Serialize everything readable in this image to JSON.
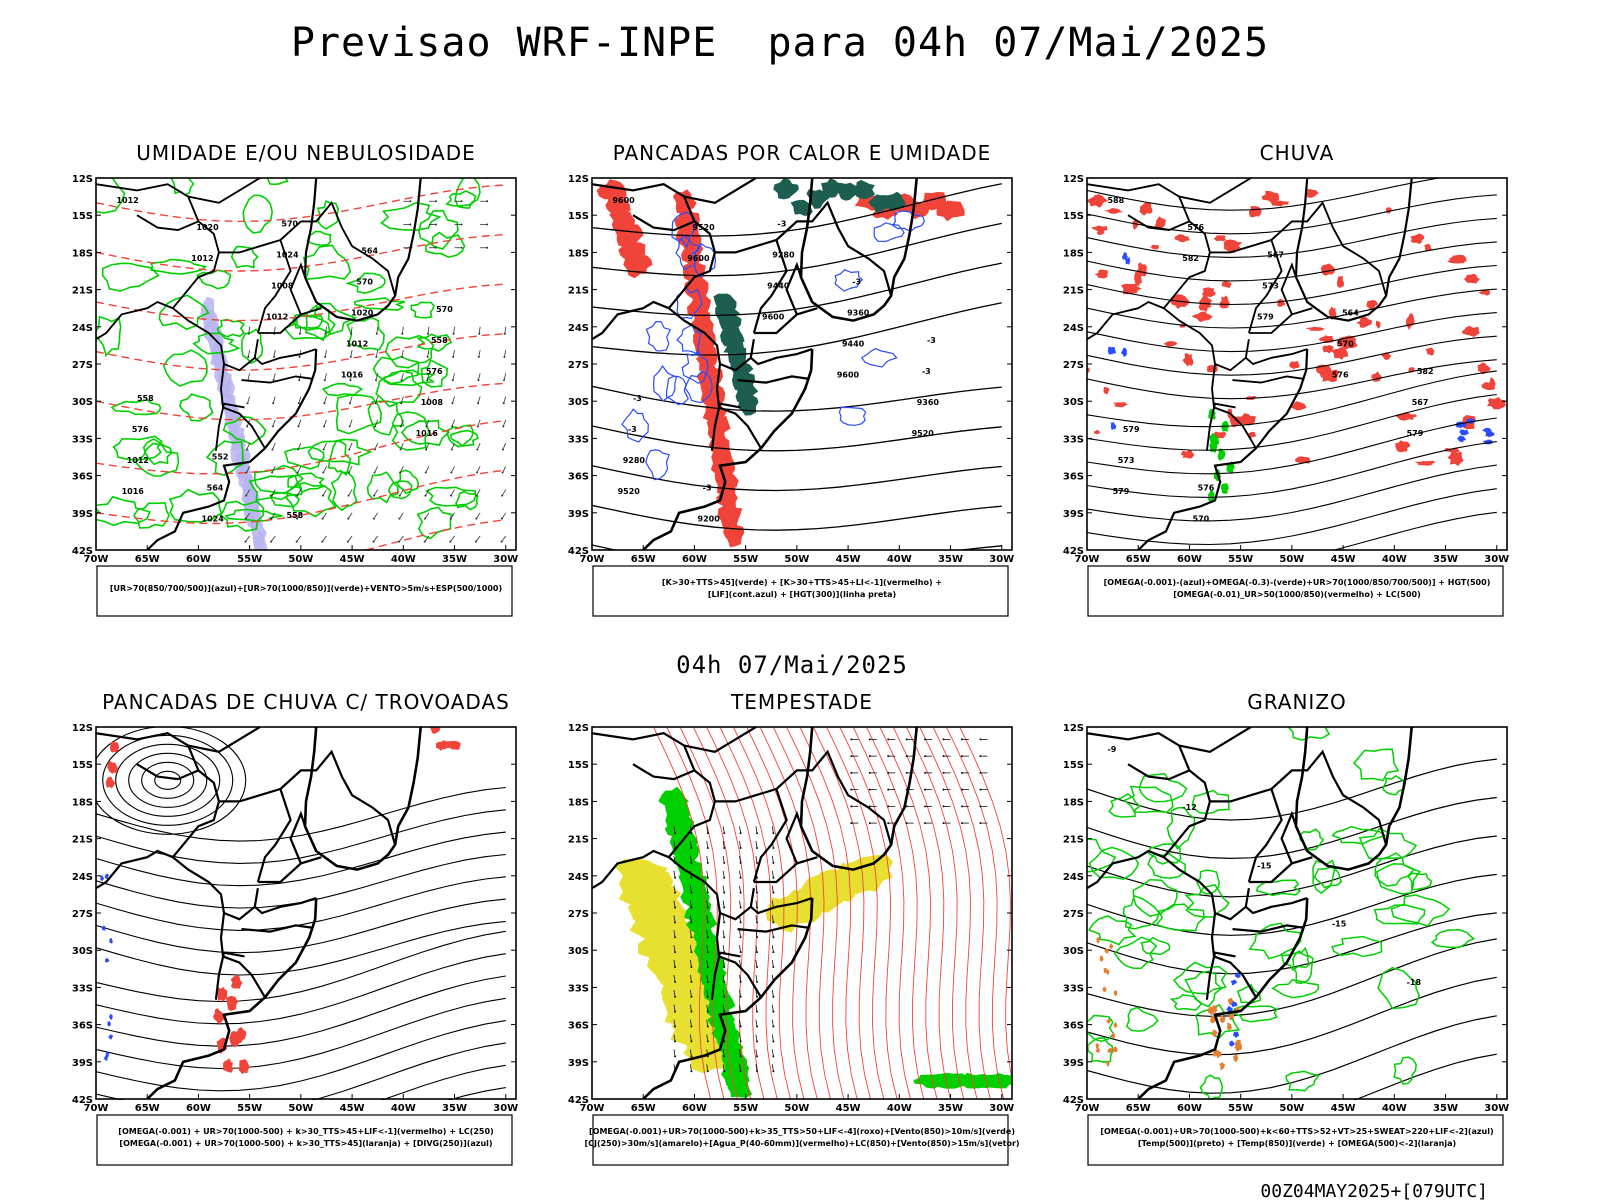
{
  "main_title": "Previsao WRF-INPE  para 04h 07/Mai/2025",
  "mid_label": "04h 07/Mai/2025",
  "footer_stamp": "00Z04MAY2025+[079UTC]",
  "colors": {
    "red": "#f0443a",
    "green": "#00d000",
    "blue": "#2a4cff",
    "lav": "#b8b4f0",
    "yellow": "#e8e030",
    "dkgreen": "#1e5e50",
    "orange": "#e08030",
    "black": "#000000"
  },
  "chart_data": {
    "type": "map-panels",
    "lat_ticks": [
      "12S",
      "15S",
      "18S",
      "21S",
      "24S",
      "27S",
      "30S",
      "33S",
      "36S",
      "39S",
      "42S"
    ],
    "lon_ticks": [
      "70W",
      "65W",
      "60W",
      "55W",
      "50W",
      "45W",
      "40W",
      "35W",
      "30W"
    ],
    "panels": [
      {
        "title": "UMIDADE E/OU NEBULOSIDADE",
        "caption": [
          "[UR>70(850/700/500)](azul)+[UR>70(1000/850)](verde)+VENTO>5m/s+ESP(500/1000)"
        ],
        "contour_labels": [
          "1012",
          "1012",
          "1012",
          "1016",
          "1016",
          "1016",
          "1020",
          "1008",
          "1012",
          "1008",
          "1012",
          "1024",
          "1024",
          "1020",
          "576",
          "576",
          "564",
          "570",
          "570",
          "558",
          "558",
          "552",
          "558",
          "564",
          "570"
        ]
      },
      {
        "title": "PANCADAS POR CALOR E UMIDADE",
        "caption": [
          "[K>30+TTS>45](verde) + [K>30+TTS>45+LI<-1](vermelho) +",
          "[LIF](cont.azul) + [HGT(300)](linha preta)"
        ],
        "contour_labels": [
          "9600",
          "9600",
          "9600",
          "9600",
          "9520",
          "9520",
          "9520",
          "9440",
          "9440",
          "9360",
          "9280",
          "9200",
          "9280",
          "9360",
          "-3",
          "-3",
          "-3",
          "-3",
          "-3",
          "-3",
          "-3"
        ]
      },
      {
        "title": "CHUVA",
        "caption": [
          "[OMEGA(-0.001)-(azul)+OMEGA(-0.3)-(verde)+UR>70(1000/850/700/500)] + HGT(500)",
          "[OMEGA(-0.01)_UR>50(1000/850)(vermelho) + LC(500)"
        ],
        "contour_labels": [
          "588",
          "582",
          "579",
          "576",
          "579",
          "579",
          "576",
          "573",
          "570",
          "567",
          "573",
          "570",
          "567",
          "564",
          "582",
          "579",
          "576"
        ]
      },
      {
        "title": "PANCADAS DE CHUVA C/ TROVOADAS",
        "caption": [
          "[OMEGA(-0.001) + UR>70(1000-500) + k>30_TTS>45+LIF<-1](vermelho) + LC(250)",
          "[OMEGA(-0.001) + UR>70(1000-500) + k>30_TTS>45](laranja) + [DIVG(250)](azul)"
        ],
        "contour_labels": []
      },
      {
        "title": "TEMPESTADE",
        "caption": [
          "[OMEGA(-0.001)+UR>70(1000-500)+k>35_TTS>50+LIF<-4](roxo)+[Vento(850)>10m/s](verde)",
          "[CJ(250)>30m/s](amarelo)+[Agua_P(40-60mm)](vermelho)+LC(850)+[Vento(850)>15m/s](vetor)"
        ],
        "contour_labels": []
      },
      {
        "title": "GRANIZO",
        "caption": [
          "[OMEGA(-0.001)+UR>70(1000-500)+k<60+TTS>52+VT>25+SWEAT>220+LIF<-2](azul)",
          "[Temp(500)](preto) + [Temp(850)](verde) + [OMEGA(500)<-2](laranja)"
        ],
        "contour_labels": [
          "-9",
          "-12",
          "-15",
          "-15",
          "-18"
        ]
      }
    ]
  }
}
